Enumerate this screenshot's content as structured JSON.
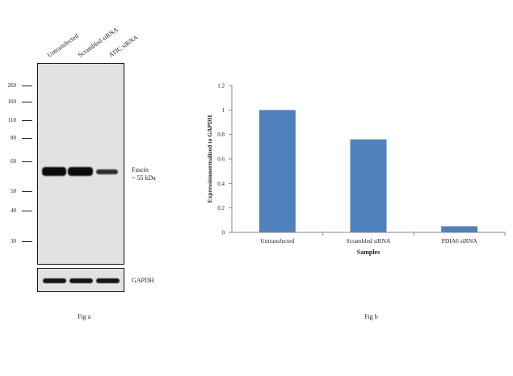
{
  "blot": {
    "lanes": [
      "Untransfected",
      "Scrambled siRNA",
      "ATIC siRNA"
    ],
    "mw_markers": [
      "260",
      "160",
      "110",
      "80",
      "60",
      "50",
      "40",
      "30"
    ],
    "target_label_line1": "Fascin",
    "target_label_line2": "~ 55 kDa",
    "loading_control_label": "GAPDH",
    "caption": "Fig a",
    "band_intensity": [
      1.0,
      0.95,
      0.45
    ]
  },
  "chart_data": {
    "type": "bar",
    "categories": [
      "Untransfected",
      "Scrambled siRNA",
      "PDIA6 siRNA"
    ],
    "values": [
      1.0,
      0.76,
      0.05
    ],
    "xlabel": "Samples",
    "ylabel": "Expressionnormalized to GAPDH",
    "ylim": [
      0,
      1.2
    ],
    "yticks": [
      "0",
      "0.2",
      "0.4",
      "0.6",
      "0.8",
      "1",
      "1.2"
    ],
    "bar_color": "#4f81bd",
    "grid": false,
    "caption": "Fig b"
  }
}
